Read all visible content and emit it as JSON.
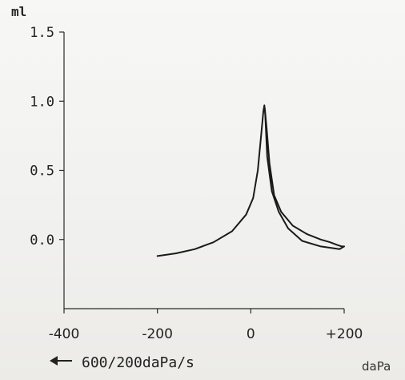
{
  "chart_data": {
    "type": "line",
    "title": "",
    "ylabel": "ml",
    "xlabel": "daPa",
    "sweep_note": "600/200daPa/s",
    "xlim": [
      -400,
      200
    ],
    "ylim": [
      -0.5,
      1.5
    ],
    "x_ticks": [
      -400,
      -200,
      0,
      200
    ],
    "x_tick_labels": [
      "-400",
      "-200",
      "0",
      "+200"
    ],
    "y_ticks": [
      0.0,
      0.5,
      1.0,
      1.5
    ],
    "y_tick_labels": [
      "0.0",
      "0.5",
      "1.0",
      "1.5"
    ],
    "grid": false,
    "series": [
      {
        "color": "#1a1a1a",
        "x": [
          -200,
          -160,
          -120,
          -80,
          -40,
          -10,
          5,
          15,
          22,
          27,
          29,
          31,
          35,
          45,
          60,
          80,
          110,
          150,
          190,
          200,
          195,
          185,
          170,
          150,
          120,
          90,
          65,
          50,
          40,
          34,
          30
        ],
        "y": [
          -0.12,
          -0.1,
          -0.07,
          -0.02,
          0.06,
          0.18,
          0.3,
          0.5,
          0.75,
          0.93,
          0.97,
          0.9,
          0.6,
          0.35,
          0.2,
          0.08,
          -0.01,
          -0.05,
          -0.07,
          -0.05,
          -0.05,
          -0.04,
          -0.02,
          0.0,
          0.04,
          0.1,
          0.2,
          0.32,
          0.55,
          0.8,
          0.95
        ]
      }
    ]
  }
}
